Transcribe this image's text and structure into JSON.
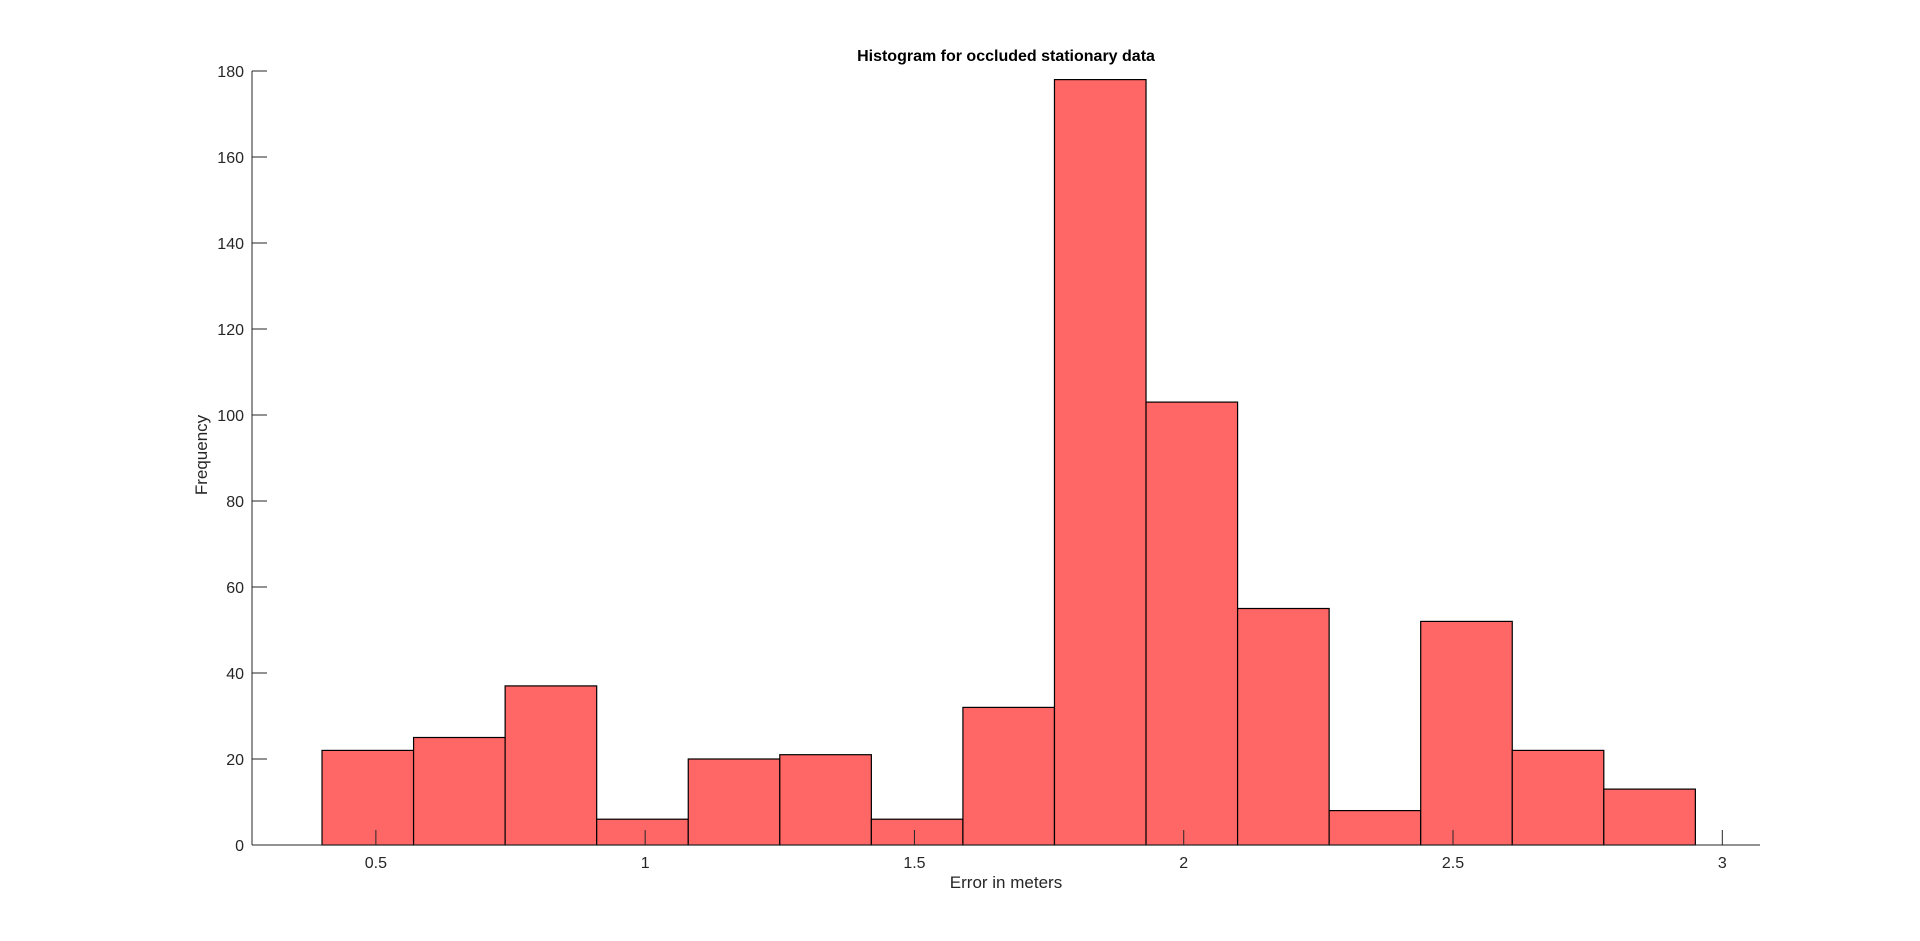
{
  "chart_data": {
    "type": "bar",
    "title": "Histogram for occluded stationary data",
    "xlabel": "Error in meters",
    "ylabel": "Frequency",
    "xlim": [
      0.27,
      3.07
    ],
    "ylim": [
      0,
      180
    ],
    "xticks": [
      0.5,
      1,
      1.5,
      2,
      2.5,
      3
    ],
    "xtick_labels": [
      "0.5",
      "1",
      "1.5",
      "2",
      "2.5",
      "3"
    ],
    "yticks": [
      0,
      20,
      40,
      60,
      80,
      100,
      120,
      140,
      160,
      180
    ],
    "ytick_labels": [
      "0",
      "20",
      "40",
      "60",
      "80",
      "100",
      "120",
      "140",
      "160",
      "180"
    ],
    "bin_edges": [
      0.4,
      0.57,
      0.74,
      0.91,
      1.08,
      1.25,
      1.42,
      1.59,
      1.76,
      1.93,
      2.1,
      2.27,
      2.44,
      2.61,
      2.78,
      2.95
    ],
    "values": [
      22,
      25,
      37,
      6,
      20,
      21,
      6,
      32,
      178,
      103,
      55,
      8,
      52,
      22,
      13
    ],
    "grid": false,
    "bar_color": "#ff6666",
    "edge_color": "#000000"
  }
}
